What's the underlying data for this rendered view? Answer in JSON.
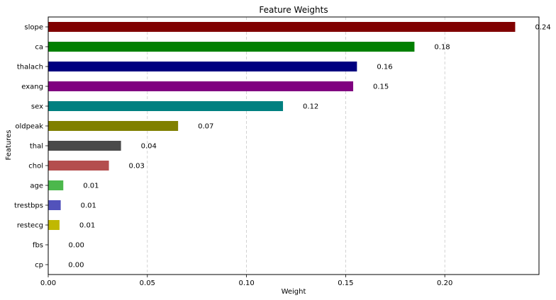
{
  "chart_data": {
    "type": "bar",
    "orientation": "horizontal",
    "title": "Feature Weights",
    "xlabel": "Weight",
    "ylabel": "Features",
    "xlim": [
      0,
      0.2475
    ],
    "xticks": [
      "0.00",
      "0.05",
      "0.10",
      "0.15",
      "0.20"
    ],
    "xtick_values": [
      0,
      0.05,
      0.1,
      0.15,
      0.2
    ],
    "grid": "x-dashed",
    "categories": [
      "slope",
      "ca",
      "thalach",
      "exang",
      "sex",
      "oldpeak",
      "thal",
      "chol",
      "age",
      "trestbps",
      "restecg",
      "fbs",
      "cp"
    ],
    "values": [
      0.2355,
      0.1847,
      0.1557,
      0.1538,
      0.1184,
      0.0655,
      0.0367,
      0.0306,
      0.0076,
      0.0063,
      0.0057,
      0.0002,
      0.0001
    ],
    "value_labels": [
      "0.24",
      "0.18",
      "0.16",
      "0.15",
      "0.12",
      "0.07",
      "0.04",
      "0.03",
      "0.01",
      "0.01",
      "0.01",
      "0.00",
      "0.00"
    ],
    "colors": [
      "#800000",
      "#008000",
      "#000080",
      "#800080",
      "#008080",
      "#808000",
      "#4a4a4a",
      "#b44e4e",
      "#4cb84c",
      "#5252bb",
      "#c0b800",
      "#2a2a2a",
      "#2a2a2a"
    ]
  }
}
